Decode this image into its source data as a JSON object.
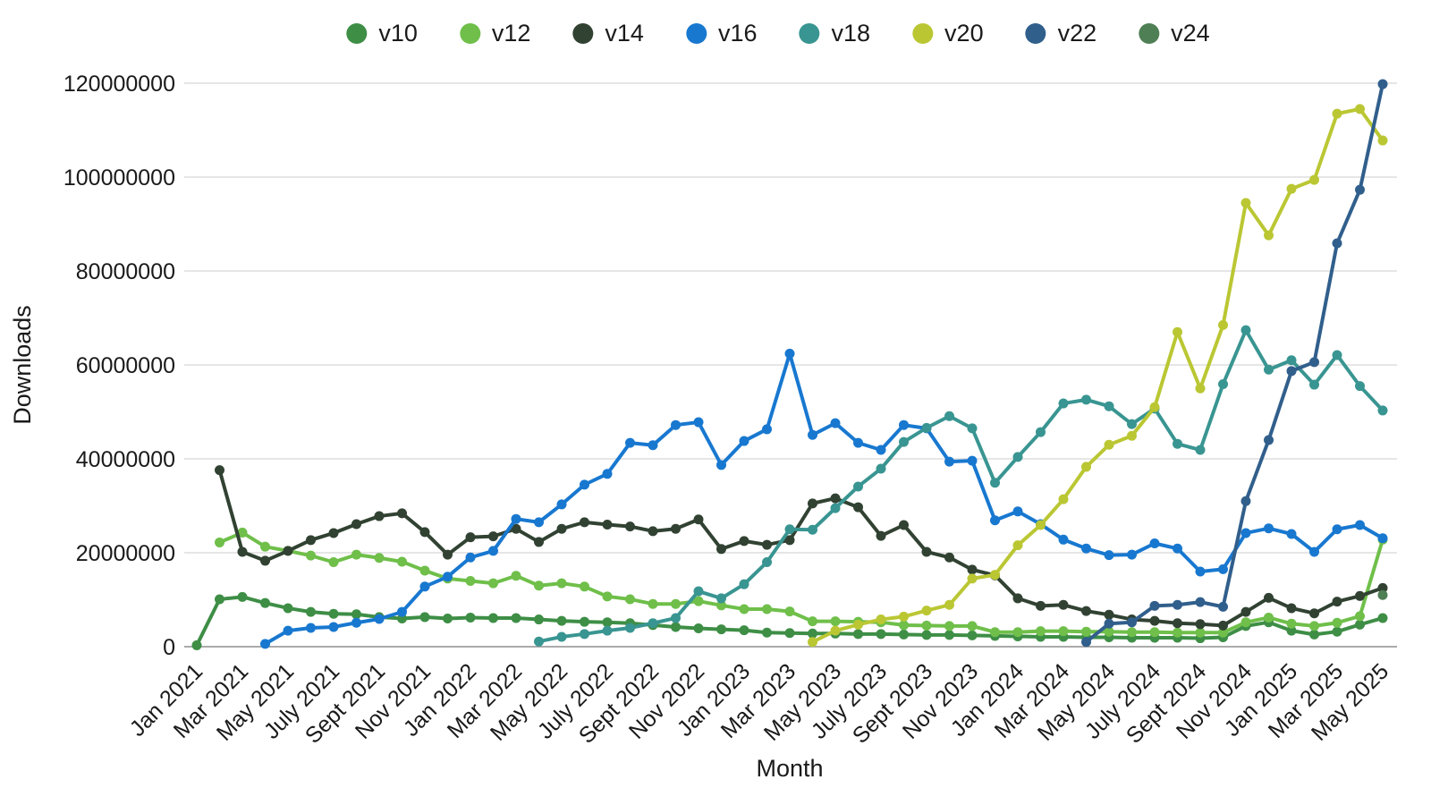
{
  "chart_data": {
    "type": "line",
    "title": "",
    "xlabel": "Month",
    "ylabel": "Downloads",
    "values_unit": "millions of downloads",
    "legend_position": "top-center",
    "grid": "horizontal",
    "x_tick_step": 2,
    "ylim_millions": [
      0,
      120
    ],
    "y_ticks": [
      {
        "value": 0,
        "label": "0"
      },
      {
        "value": 20,
        "label": "20000000"
      },
      {
        "value": 40,
        "label": "40000000"
      },
      {
        "value": 60,
        "label": "60000000"
      },
      {
        "value": 80,
        "label": "80000000"
      },
      {
        "value": 100,
        "label": "100000000"
      },
      {
        "value": 120,
        "label": "120000000"
      }
    ],
    "categories": [
      "Jan 2021",
      "Feb 2021",
      "Mar 2021",
      "Apr 2021",
      "May 2021",
      "Jun 2021",
      "July 2021",
      "Aug 2021",
      "Sept 2021",
      "Oct 2021",
      "Nov 2021",
      "Dec 2021",
      "Jan 2022",
      "Feb 2022",
      "Mar 2022",
      "Apr 2022",
      "May 2022",
      "Jun 2022",
      "July 2022",
      "Aug 2022",
      "Sept 2022",
      "Oct 2022",
      "Nov 2022",
      "Dec 2022",
      "Jan 2023",
      "Feb 2023",
      "Mar 2023",
      "Apr 2023",
      "May 2023",
      "Jun 2023",
      "July 2023",
      "Aug 2023",
      "Sept 2023",
      "Oct 2023",
      "Nov 2023",
      "Dec 2023",
      "Jan 2024",
      "Feb 2024",
      "Mar 2024",
      "Apr 2024",
      "May 2024",
      "Jun 2024",
      "July 2024",
      "Aug 2024",
      "Sept 2024",
      "Oct 2024",
      "Nov 2024",
      "Dec 2024",
      "Jan 2025",
      "Feb 2025",
      "Mar 2025",
      "Apr 2025",
      "May 2025"
    ],
    "series": [
      {
        "name": "v10",
        "color": "#3e8e46",
        "start": 0,
        "values": [
          0.3,
          10.1,
          10.6,
          9.3,
          8.2,
          7.4,
          7.0,
          6.9,
          6.3,
          6.0,
          6.3,
          6.0,
          6.2,
          6.1,
          6.1,
          5.8,
          5.5,
          5.3,
          5.2,
          5.0,
          4.6,
          4.2,
          3.9,
          3.7,
          3.5,
          3.0,
          2.9,
          2.8,
          2.8,
          2.7,
          2.7,
          2.6,
          2.5,
          2.5,
          2.4,
          2.3,
          2.2,
          2.1,
          2.1,
          2.0,
          2.0,
          1.9,
          1.9,
          1.9,
          1.8,
          2.0,
          4.4,
          5.2,
          3.4,
          2.6,
          3.2,
          4.7,
          6.1
        ]
      },
      {
        "name": "v12",
        "color": "#6fbf4a",
        "start": 1,
        "values": [
          22.2,
          24.3,
          21.3,
          20.4,
          19.4,
          18.0,
          19.6,
          18.9,
          18.1,
          16.2,
          14.5,
          14.0,
          13.5,
          15.1,
          13.0,
          13.5,
          12.8,
          10.7,
          10.1,
          9.1,
          9.1,
          9.7,
          8.8,
          8.0,
          8.0,
          7.5,
          5.4,
          5.4,
          5.3,
          5.2,
          4.6,
          4.5,
          4.4,
          4.4,
          3.1,
          3.1,
          3.3,
          3.3,
          3.2,
          3.2,
          3.1,
          3.1,
          3.0,
          3.0,
          3.0,
          5.2,
          6.2,
          4.9,
          4.4,
          5.1,
          6.5,
          22.8
        ]
      },
      {
        "name": "v14",
        "color": "#314232",
        "start": 1,
        "values": [
          37.6,
          20.2,
          18.3,
          20.4,
          22.7,
          24.2,
          26.1,
          27.8,
          28.4,
          24.4,
          19.6,
          23.3,
          23.5,
          25.1,
          22.3,
          25.1,
          26.5,
          26.0,
          25.6,
          24.6,
          25.1,
          27.1,
          20.8,
          22.5,
          21.7,
          22.7,
          30.5,
          31.6,
          29.7,
          23.6,
          25.9,
          20.2,
          19.0,
          16.4,
          15.2,
          10.3,
          8.7,
          8.9,
          7.6,
          6.8,
          5.8,
          5.5,
          5.0,
          4.8,
          4.5,
          7.4,
          10.4,
          8.2,
          7.1,
          9.6,
          10.8,
          12.5
        ]
      },
      {
        "name": "v16",
        "color": "#1878d0",
        "start": 3,
        "values": [
          0.6,
          3.4,
          4.0,
          4.2,
          5.1,
          5.9,
          7.4,
          12.8,
          14.9,
          19.0,
          20.4,
          27.2,
          26.5,
          30.3,
          34.5,
          36.8,
          43.4,
          42.9,
          47.2,
          47.8,
          38.7,
          43.8,
          46.3,
          62.4,
          45.1,
          47.6,
          43.4,
          41.9,
          47.2,
          46.5,
          39.4,
          39.6,
          26.9,
          28.8,
          26.1,
          22.8,
          20.9,
          19.5,
          19.6,
          22.0,
          20.9,
          16.0,
          16.5,
          24.2,
          25.2,
          24.0,
          20.2,
          25.0,
          25.9,
          23.1
        ]
      },
      {
        "name": "v18",
        "color": "#399591",
        "start": 15,
        "values": [
          1.1,
          2.1,
          2.7,
          3.4,
          4.0,
          5.0,
          6.1,
          11.8,
          10.3,
          13.3,
          18.0,
          25.0,
          24.9,
          29.5,
          34.1,
          37.9,
          43.6,
          46.6,
          49.1,
          46.5,
          34.9,
          40.4,
          45.7,
          51.8,
          52.6,
          51.2,
          47.4,
          50.7,
          43.2,
          41.9,
          55.9,
          67.4,
          59.0,
          61.0,
          55.8,
          62.1,
          55.5,
          50.3
        ]
      },
      {
        "name": "v20",
        "color": "#bac733",
        "start": 27,
        "values": [
          1.0,
          3.4,
          4.7,
          5.8,
          6.4,
          7.7,
          8.9,
          14.5,
          15.3,
          21.6,
          25.9,
          31.4,
          38.3,
          43.0,
          44.9,
          51.0,
          67.0,
          55.0,
          68.5,
          94.5,
          87.6,
          97.5,
          99.4,
          113.5,
          114.5,
          107.8
        ]
      },
      {
        "name": "v22",
        "color": "#315f8c",
        "start": 39,
        "values": [
          1.0,
          4.9,
          5.2,
          8.7,
          8.9,
          9.5,
          8.5,
          31.0,
          44.0,
          58.7,
          60.6,
          85.9,
          97.3,
          119.8
        ]
      },
      {
        "name": "v24",
        "color": "#4f7f55",
        "start": 52,
        "values": [
          11.0
        ]
      }
    ]
  }
}
